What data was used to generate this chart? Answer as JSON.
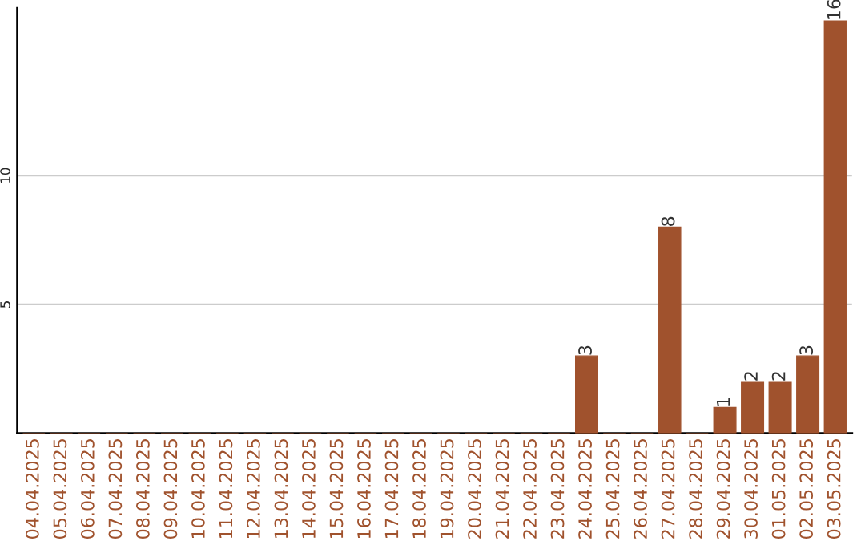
{
  "chart_data": {
    "type": "bar",
    "categories": [
      "04.04.2025",
      "05.04.2025",
      "06.04.2025",
      "07.04.2025",
      "08.04.2025",
      "09.04.2025",
      "10.04.2025",
      "11.04.2025",
      "12.04.2025",
      "13.04.2025",
      "14.04.2025",
      "15.04.2025",
      "16.04.2025",
      "17.04.2025",
      "18.04.2025",
      "19.04.2025",
      "20.04.2025",
      "21.04.2025",
      "22.04.2025",
      "23.04.2025",
      "24.04.2025",
      "25.04.2025",
      "26.04.2025",
      "27.04.2025",
      "28.04.2025",
      "29.04.2025",
      "30.04.2025",
      "01.05.2025",
      "02.05.2025",
      "03.05.2025"
    ],
    "values": [
      0,
      0,
      0,
      0,
      0,
      0,
      0,
      0,
      0,
      0,
      0,
      0,
      0,
      0,
      0,
      0,
      0,
      0,
      0,
      0,
      3,
      0,
      0,
      8,
      0,
      1,
      2,
      2,
      3,
      16
    ],
    "value_labels": [
      null,
      null,
      null,
      null,
      null,
      null,
      null,
      null,
      null,
      null,
      null,
      null,
      null,
      null,
      null,
      null,
      null,
      null,
      null,
      null,
      "3",
      null,
      null,
      "8",
      null,
      "1",
      "2",
      "2",
      "3",
      "16"
    ],
    "color": "#a0522d",
    "ylim": [
      0,
      16.5
    ],
    "yticks": [
      5,
      10
    ],
    "grid": "y",
    "legend": false
  }
}
